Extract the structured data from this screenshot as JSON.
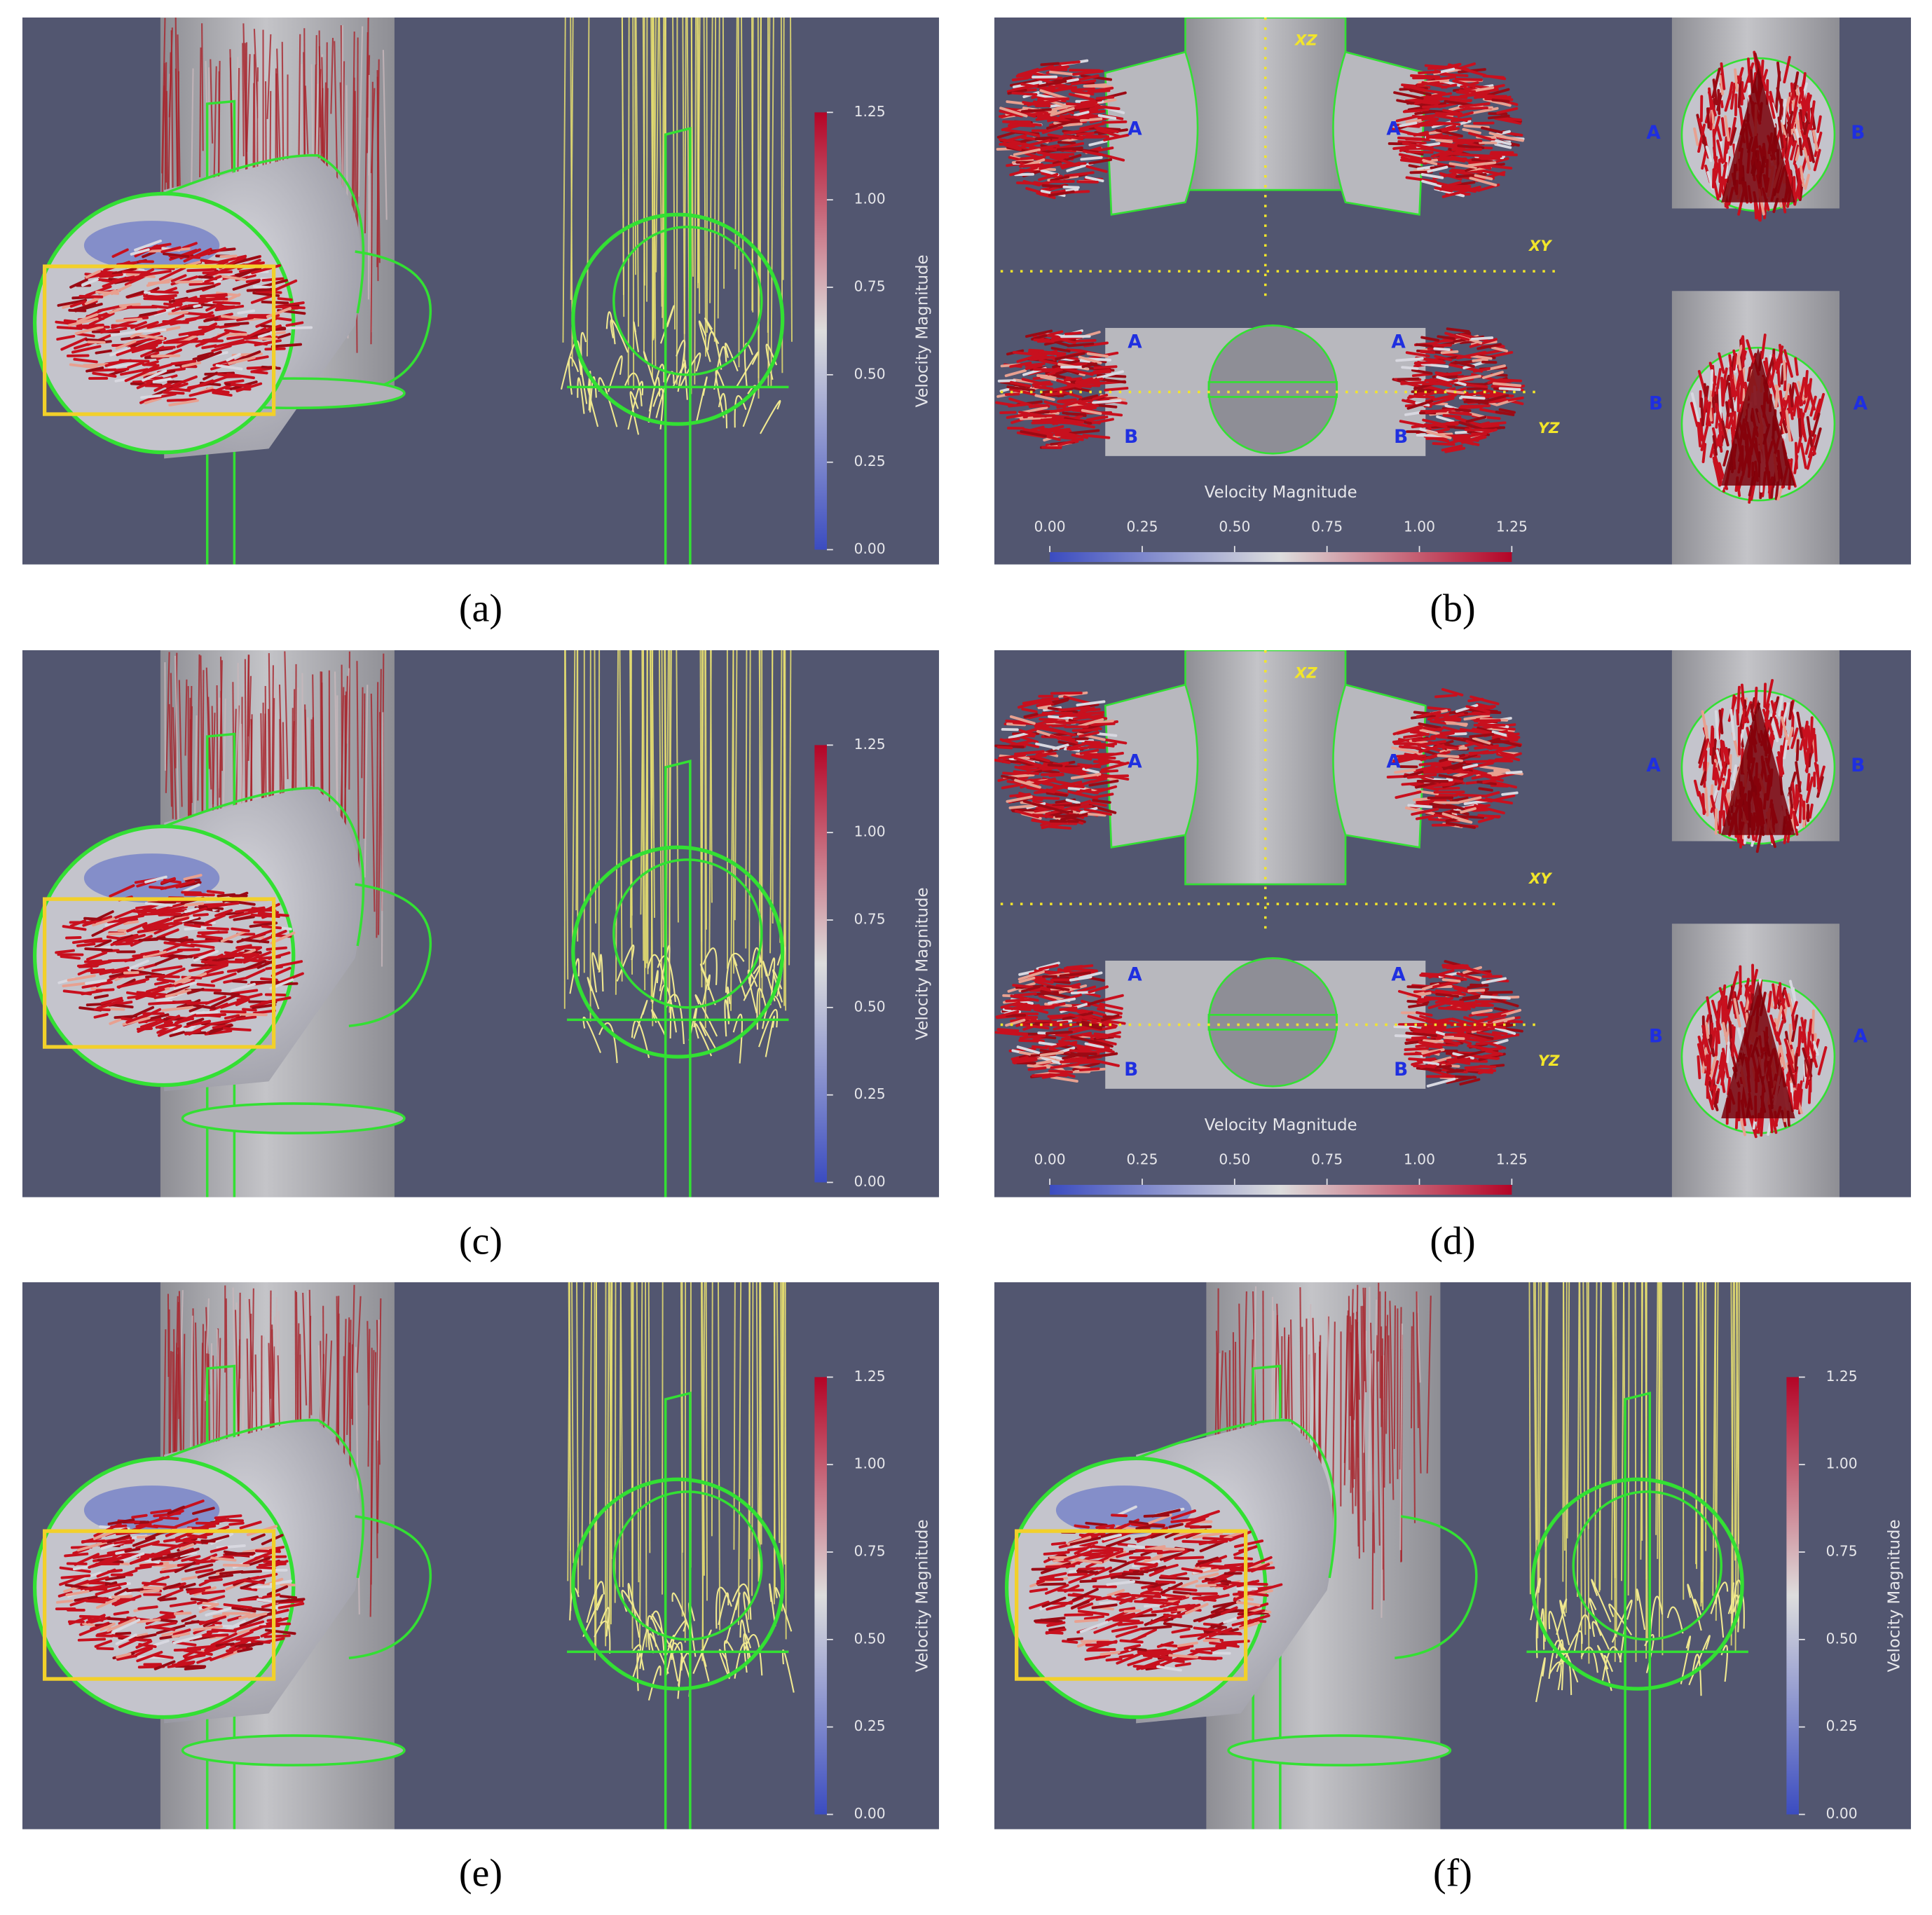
{
  "panels": [
    {
      "caption": "(a)",
      "colorbar": {
        "title": "Velocity Magnitude",
        "ticks": [
          "0.00",
          "0.25",
          "0.50",
          "0.75",
          "1.00",
          "1.25"
        ]
      }
    },
    {
      "caption": "(b)",
      "labels": [
        "XZ",
        "A",
        "A",
        "A",
        "B",
        "XY",
        "A",
        "A",
        "YZ",
        "B",
        "B",
        "B",
        "A"
      ],
      "colorbar": {
        "title": "Velocity Magnitude",
        "ticks": [
          "0.00",
          "0.25",
          "0.50",
          "0.75",
          "1.00",
          "1.25"
        ]
      }
    },
    {
      "caption": "(c)",
      "colorbar": {
        "title": "Velocity Magnitude",
        "ticks": [
          "0.00",
          "0.25",
          "0.50",
          "0.75",
          "1.00",
          "1.25"
        ]
      }
    },
    {
      "caption": "(d)",
      "labels": [
        "XZ",
        "A",
        "A",
        "A",
        "B",
        "XY",
        "A",
        "A",
        "YZ",
        "B",
        "B",
        "B",
        "A"
      ],
      "colorbar": {
        "title": "Velocity Magnitude",
        "ticks": [
          "0.00",
          "0.25",
          "0.50",
          "0.75",
          "1.00",
          "1.25"
        ]
      }
    },
    {
      "caption": "(e)",
      "colorbar": {
        "title": "Velocity Magnitude",
        "ticks": [
          "0.00",
          "0.25",
          "0.50",
          "0.75",
          "1.00",
          "1.25"
        ]
      }
    },
    {
      "caption": "(f)",
      "colorbar": {
        "title": "Velocity Magnitude",
        "ticks": [
          "0.00",
          "0.25",
          "0.50",
          "0.75",
          "1.00",
          "1.25"
        ]
      }
    }
  ]
}
